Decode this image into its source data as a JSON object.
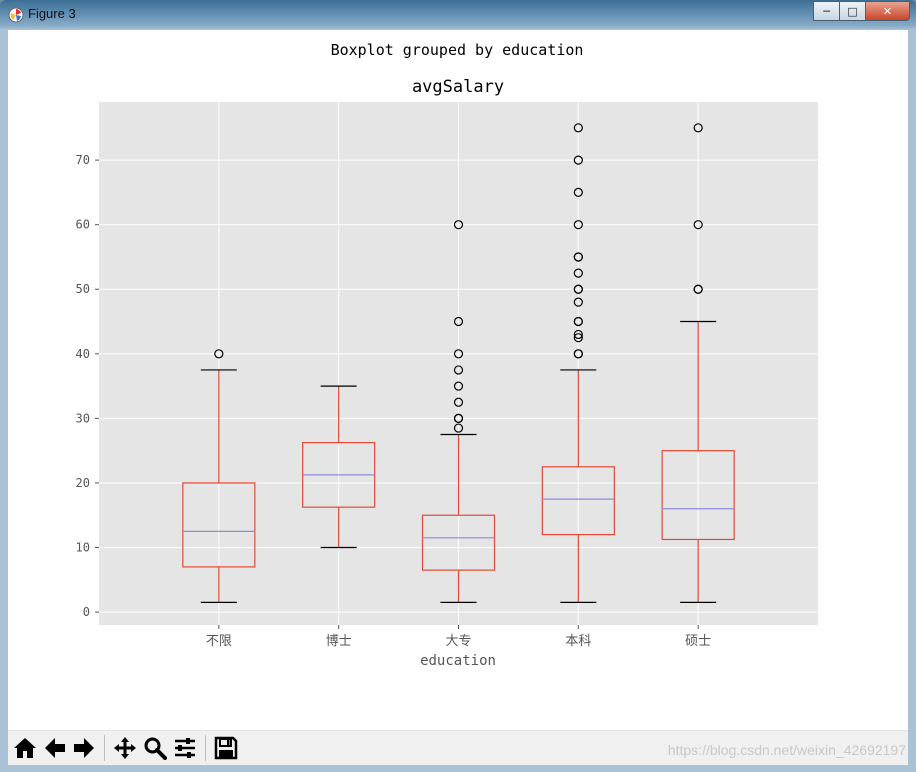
{
  "window": {
    "title": "Figure 3"
  },
  "figure": {
    "suptitle": "Boxplot grouped by education"
  },
  "chart_data": {
    "type": "boxplot",
    "title": "avgSalary",
    "xlabel": "education",
    "ylabel": "",
    "ylim": [
      -2,
      79
    ],
    "yticks": [
      0,
      10,
      20,
      30,
      40,
      50,
      60,
      70
    ],
    "grid": true,
    "categories": [
      "不限",
      "博士",
      "大专",
      "本科",
      "硕士"
    ],
    "boxes": [
      {
        "name": "不限",
        "whislo": 1.5,
        "q1": 7,
        "median": 12.5,
        "q3": 20,
        "whishi": 37.5,
        "fliers": [
          40
        ]
      },
      {
        "name": "博士",
        "whislo": 10,
        "q1": 16.25,
        "median": 21.25,
        "q3": 26.25,
        "whishi": 35,
        "fliers": []
      },
      {
        "name": "大专",
        "whislo": 1.5,
        "q1": 6.5,
        "median": 11.5,
        "q3": 15,
        "whishi": 27.5,
        "fliers": [
          28.5,
          30,
          30,
          32.5,
          35,
          37.5,
          40,
          45,
          60
        ]
      },
      {
        "name": "本科",
        "whislo": 1.5,
        "q1": 12,
        "median": 17.5,
        "q3": 22.5,
        "whishi": 37.5,
        "fliers": [
          40,
          40,
          42.5,
          43,
          45,
          45,
          48,
          50,
          50,
          52.5,
          55,
          55,
          60,
          65,
          70,
          75
        ]
      },
      {
        "name": "硕士",
        "whislo": 1.5,
        "q1": 11.25,
        "median": 16,
        "q3": 25,
        "whishi": 45,
        "fliers": [
          50,
          50,
          60,
          75
        ]
      }
    ],
    "colors": {
      "box": "#E24A33",
      "median": "#8EBA42",
      "whisker": "#E24A33",
      "cap": "#000000",
      "flier": "#000000",
      "background": "#E5E5E5",
      "grid": "#FFFFFF"
    }
  },
  "toolbar": {
    "buttons": [
      {
        "name": "home-button",
        "icon": "home-icon"
      },
      {
        "name": "back-button",
        "icon": "back-arrow-icon"
      },
      {
        "name": "forward-button",
        "icon": "forward-arrow-icon"
      },
      {
        "name": "pan-button",
        "icon": "move-icon"
      },
      {
        "name": "zoom-button",
        "icon": "magnifier-icon"
      },
      {
        "name": "configure-button",
        "icon": "sliders-icon"
      },
      {
        "name": "save-button",
        "icon": "floppy-disk-icon"
      }
    ]
  },
  "watermark": "https://blog.csdn.net/weixin_42692197"
}
